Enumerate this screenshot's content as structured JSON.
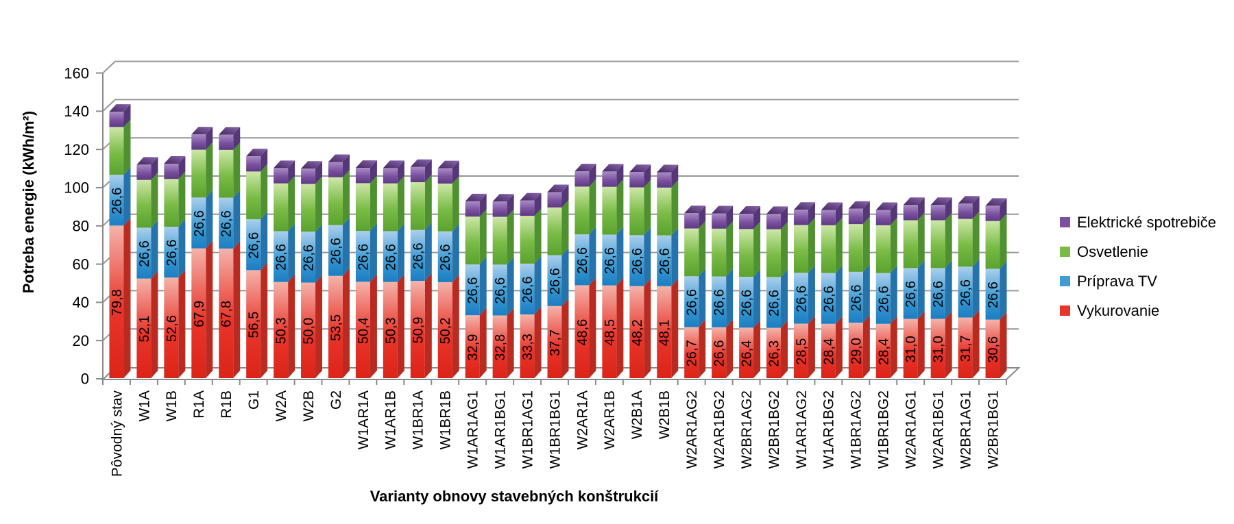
{
  "chart_data": {
    "type": "bar",
    "stacked": true,
    "style": "3d",
    "grid": true,
    "background": "#ffffff",
    "grid_color": "#969696",
    "axis_color": "#8a8a8a",
    "xlabel": "Varianty obnovy stavebných konštrukcií",
    "ylabel": "Potreba energie (kWh/m²)",
    "ylim": [
      0,
      160
    ],
    "yticks": [
      0,
      20,
      40,
      60,
      80,
      100,
      120,
      140,
      160
    ],
    "decimal_separator": ",",
    "legend_position": "right",
    "categories": [
      "Pôvodný stav",
      "W1A",
      "W1B",
      "R1A",
      "R1B",
      "G1",
      "W2A",
      "W2B",
      "G2",
      "W1AR1A",
      "W1AR1B",
      "W1BR1A",
      "W1BR1B",
      "W1AR1AG1",
      "W1AR1BG1",
      "W1BR1AG1",
      "W1BR1BG1",
      "W2AR1A",
      "W2AR1B",
      "W2B1A",
      "W2B1B",
      "W2AR1AG2",
      "W2AR1BG2",
      "W2BR1AG2",
      "W2BR1BG2",
      "W1AR1AG2",
      "W1AR1BG2",
      "W1BR1AG2",
      "W1BR1BG2",
      "W2AR1AG1",
      "W2AR1BG1",
      "W2BR1AG1",
      "W2BR1BG1"
    ],
    "series": [
      {
        "name": "Vykurovanie",
        "color": "#e8352b",
        "light": "#f4b3aa",
        "dark": "#dc2418",
        "side": "#b92b21",
        "labels_visible": true,
        "values": [
          79.8,
          52.1,
          52.6,
          67.9,
          67.8,
          56.5,
          50.3,
          50.0,
          53.5,
          50.4,
          50.3,
          50.9,
          50.2,
          32.9,
          32.8,
          33.3,
          37.7,
          48.6,
          48.5,
          48.2,
          48.1,
          26.7,
          26.6,
          26.4,
          26.3,
          28.5,
          28.4,
          29.0,
          28.4,
          31.0,
          31.0,
          31.7,
          30.6
        ]
      },
      {
        "name": "Príprava TV",
        "color": "#3f9cd4",
        "light": "#aacfec",
        "dark": "#1b7ec2",
        "side": "#2672aa",
        "labels_visible": true,
        "values": [
          26.6,
          26.6,
          26.6,
          26.6,
          26.6,
          26.6,
          26.6,
          26.6,
          26.6,
          26.6,
          26.6,
          26.6,
          26.6,
          26.6,
          26.6,
          26.6,
          26.6,
          26.6,
          26.6,
          26.6,
          26.6,
          26.6,
          26.6,
          26.6,
          26.6,
          26.6,
          26.6,
          26.6,
          26.6,
          26.6,
          26.6,
          26.6,
          26.6
        ]
      },
      {
        "name": "Osvetlenie",
        "color": "#79bb45",
        "light": "#cde7a8",
        "dark": "#5ba230",
        "side": "#4f9130",
        "labels_visible": false,
        "values": [
          25.0,
          25.0,
          25.0,
          25.0,
          25.0,
          25.0,
          25.0,
          25.0,
          25.0,
          25.0,
          25.0,
          25.0,
          25.0,
          25.0,
          25.0,
          25.0,
          25.0,
          25.0,
          25.0,
          25.0,
          25.0,
          25.0,
          25.0,
          25.0,
          25.0,
          25.0,
          25.0,
          25.0,
          25.0,
          25.0,
          25.0,
          25.0,
          25.0
        ]
      },
      {
        "name": "Elektrické spotrebiče",
        "color": "#7b519f",
        "light": "#a98cc5",
        "dark": "#5b3a81",
        "side": "#553677",
        "top_dark": "#43265e",
        "top_light": "#8a67ae",
        "labels_visible": false,
        "values": [
          8.0,
          8.0,
          8.0,
          8.0,
          8.0,
          8.0,
          8.0,
          8.0,
          8.0,
          8.0,
          8.0,
          8.0,
          8.0,
          8.0,
          8.0,
          8.0,
          8.0,
          8.0,
          8.0,
          8.0,
          8.0,
          8.0,
          8.0,
          8.0,
          8.0,
          8.0,
          8.0,
          8.0,
          8.0,
          8.0,
          8.0,
          8.0,
          8.0
        ]
      }
    ],
    "legend": [
      {
        "label": "Elektrické spotrebiče",
        "color": "#7b519f"
      },
      {
        "label": "Osvetlenie",
        "color": "#79bb45"
      },
      {
        "label": "Príprava TV",
        "color": "#3f9cd4"
      },
      {
        "label": "Vykurovanie",
        "color": "#e8352b"
      }
    ]
  }
}
